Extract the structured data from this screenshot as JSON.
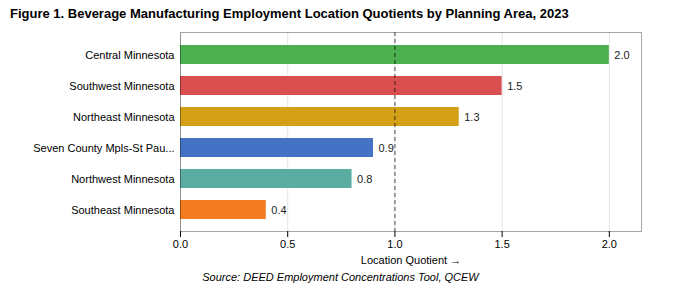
{
  "chart_data": {
    "type": "bar",
    "orientation": "horizontal",
    "title": "Figure 1. Beverage Manufacturing Employment Location Quotients by Planning Area, 2023",
    "caption": "Source: DEED Employment Concentrations Tool, QCEW",
    "categories": [
      "Southeast Minnesota",
      "Northwest Minnesota",
      "Seven County Mpls-St Pau...",
      "Northeast Minnesota",
      "Southwest Minnesota",
      "Central Minnesota"
    ],
    "values": [
      0.4,
      0.8,
      0.9,
      1.3,
      1.5,
      2.0
    ],
    "value_labels": [
      "0.4",
      "0.8",
      "0.9",
      "1.3",
      "1.5",
      "2.0"
    ],
    "colors": [
      "#f47c20",
      "#5aada0",
      "#4472c4",
      "#d4a017",
      "#d94f4f",
      "#4caf50"
    ],
    "xlabel": "Location Quotient",
    "xlim": [
      0.0,
      2.15
    ],
    "xticks": [
      {
        "value": 0.0,
        "label": "0.0"
      },
      {
        "value": 0.5,
        "label": "0.5"
      },
      {
        "value": 1.0,
        "label": "1.0"
      },
      {
        "value": 1.5,
        "label": "1.5"
      },
      {
        "value": 2.0,
        "label": "2.0"
      }
    ],
    "vline": 1.0,
    "grid": true,
    "data_labels": true
  }
}
